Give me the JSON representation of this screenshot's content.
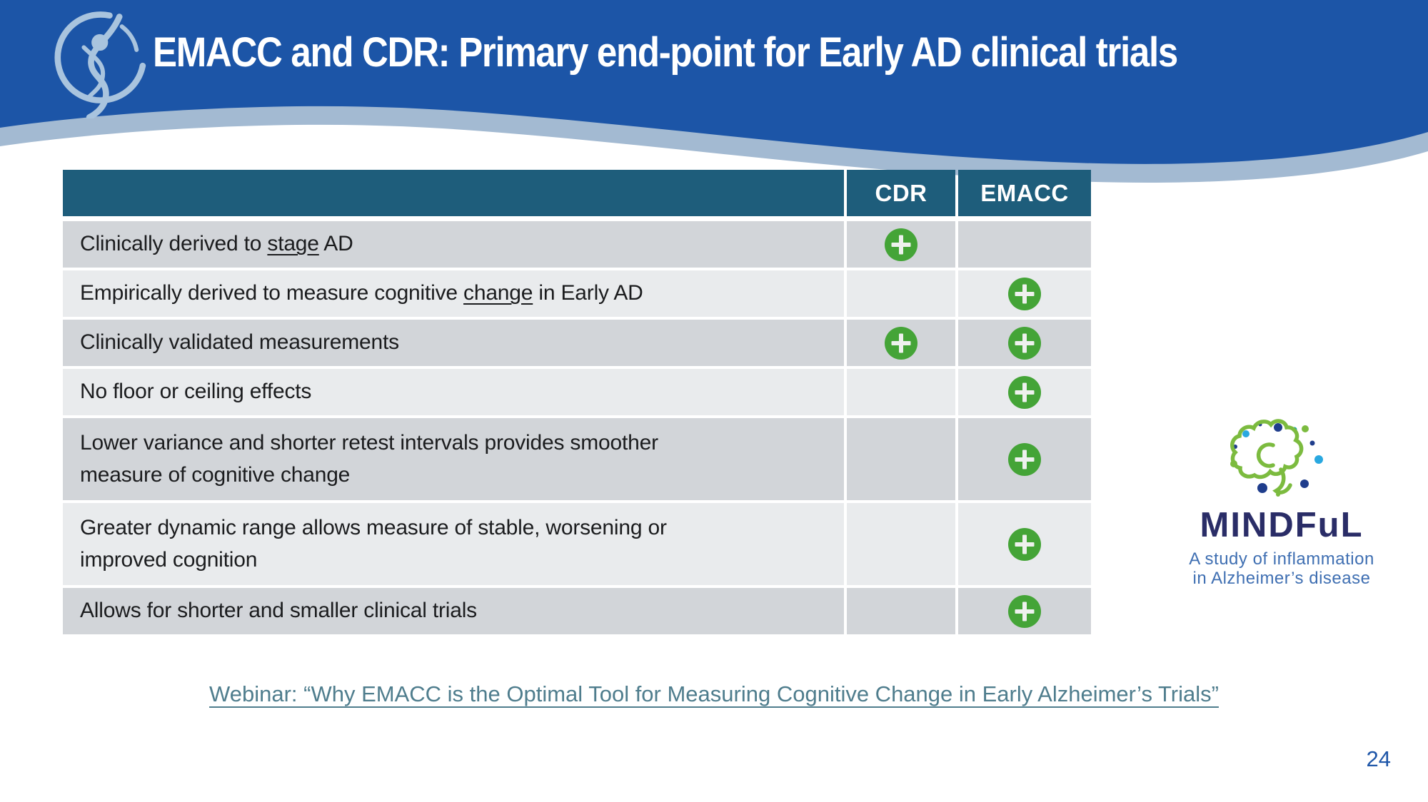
{
  "slide": {
    "title": "EMACC and CDR: Primary end-point for Early AD clinical trials",
    "page_number": "24"
  },
  "colors": {
    "banner_blue": "#1c55a7",
    "banner_accent": "#a3bad2",
    "org_logo_blue": "#a9c4de",
    "table_header_bg": "#1e5d7b",
    "row_dark": "#d2d5d9",
    "row_light": "#e9ebed",
    "plus_green": "#44a437",
    "link_teal": "#4f7d8d",
    "page_number_blue": "#1e56a8",
    "mindful_navy": "#2a2d67",
    "mindful_blue": "#3f6fb2",
    "brain_green": "#7cbb3f",
    "dot_cyan": "#29a8e0",
    "dot_navy": "#1f3d8c",
    "dot_teal": "#17a39b"
  },
  "icons": {
    "org_logo": "human-figure-swoosh-icon",
    "plus_badge": "plus-circle-icon",
    "brain": "brain-speech-bubble-icon"
  },
  "table": {
    "columns": [
      "CDR",
      "EMACC"
    ],
    "rows": [
      {
        "segments": [
          {
            "text": "Clinically derived to "
          },
          {
            "text": "stage",
            "underline": true
          },
          {
            "text": " AD"
          }
        ],
        "cdr": true,
        "emacc": false
      },
      {
        "segments": [
          {
            "text": "Empirically derived to measure cognitive "
          },
          {
            "text": "change",
            "underline": true
          },
          {
            "text": " in Early AD"
          }
        ],
        "cdr": false,
        "emacc": true
      },
      {
        "segments": [
          {
            "text": "Clinically validated measurements"
          }
        ],
        "cdr": true,
        "emacc": true
      },
      {
        "segments": [
          {
            "text": "No floor or ceiling effects"
          }
        ],
        "cdr": false,
        "emacc": true
      },
      {
        "segments": [
          {
            "text": "Lower variance and shorter retest intervals provides smoother measure of cognitive change"
          }
        ],
        "cdr": false,
        "emacc": true
      },
      {
        "segments": [
          {
            "text": "Greater dynamic range allows measure of stable, worsening or improved cognition"
          }
        ],
        "cdr": false,
        "emacc": true
      },
      {
        "segments": [
          {
            "text": "Allows for shorter and smaller clinical trials"
          }
        ],
        "cdr": false,
        "emacc": true
      }
    ]
  },
  "mindful": {
    "name": "MINDFuL",
    "tagline_line1": "A study of inflammation",
    "tagline_line2": "in Alzheimer’s disease"
  },
  "footer": {
    "webinar_link": "Webinar: “Why EMACC is the Optimal Tool for Measuring Cognitive Change in Early Alzheimer’s Trials”"
  }
}
